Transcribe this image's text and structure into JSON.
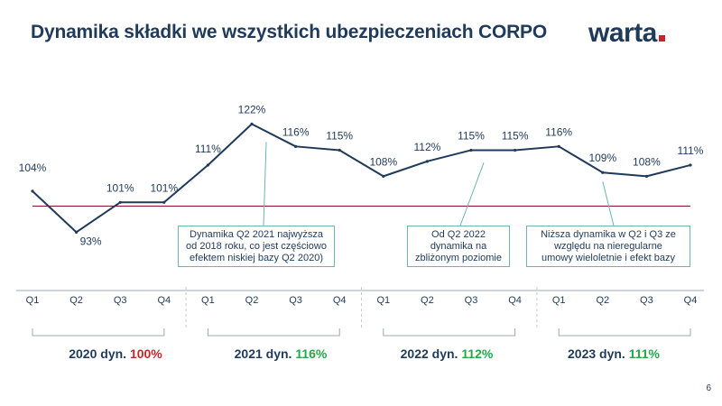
{
  "title": "Dynamika składki we wszystkich ubezpieczeniach CORPO",
  "logo_text": "warta",
  "page_number": "6",
  "colors": {
    "line": "#1f3a5a",
    "reference_line": "#8a1c3a",
    "callout_border": "#6cb3b3",
    "red": "#c0282e",
    "green": "#23a84a"
  },
  "chart_data": {
    "type": "line",
    "categories": [
      "Q1",
      "Q2",
      "Q3",
      "Q4",
      "Q1",
      "Q2",
      "Q3",
      "Q4",
      "Q1",
      "Q2",
      "Q3",
      "Q4",
      "Q1",
      "Q2",
      "Q3",
      "Q4"
    ],
    "series": [
      {
        "values": [
          104,
          93,
          101,
          101,
          111,
          122,
          116,
          115,
          108,
          112,
          115,
          115,
          116,
          109,
          108,
          111
        ]
      }
    ],
    "data_labels": [
      "104%",
      "93%",
      "101%",
      "101%",
      "111%",
      "122%",
      "116%",
      "115%",
      "108%",
      "112%",
      "115%",
      "115%",
      "116%",
      "109%",
      "108%",
      "111%"
    ],
    "reference_value": 100,
    "ylim": [
      88,
      126
    ],
    "grid": false,
    "years": [
      {
        "label": "2020 dyn.",
        "value": "100%",
        "color": "red"
      },
      {
        "label": "2021 dyn.",
        "value": "116%",
        "color": "green"
      },
      {
        "label": "2022 dyn.",
        "value": "112%",
        "color": "green"
      },
      {
        "label": "2023 dyn.",
        "value": "111%",
        "color": "green"
      }
    ],
    "annotations": [
      {
        "lines": [
          "Dynamika  Q2 2021 najwyższa",
          "od 2018 roku, co jest częściowo",
          "efektem  niskiej bazy Q2 2020)"
        ]
      },
      {
        "lines": [
          "Od Q2 2022",
          "dynamika na",
          "zbliżonym poziomie"
        ]
      },
      {
        "lines": [
          "Niższa dynamika w Q2 i Q3 ze",
          "względu na nieregularne",
          "umowy wieloletnie i efekt bazy"
        ]
      }
    ]
  }
}
